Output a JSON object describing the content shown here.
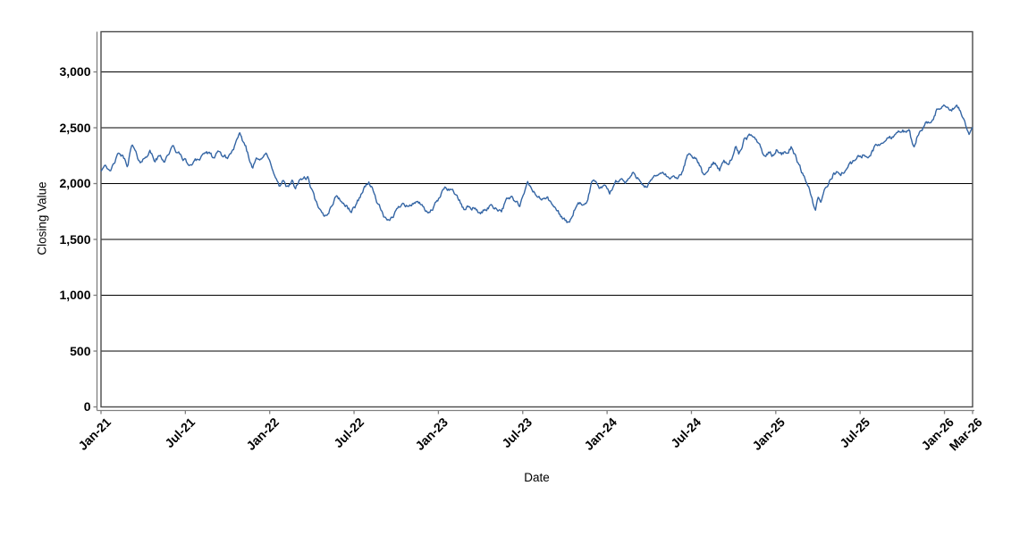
{
  "chart_data": {
    "type": "line",
    "title": "",
    "xlabel": "Date",
    "ylabel": "Closing Value",
    "x_unit_note": "x values are months elapsed since Jan-2021",
    "xlim": [
      0,
      62
    ],
    "ylim": [
      0,
      3360
    ],
    "grid": "horizontal-only",
    "legend": "none",
    "background_color": "#ffffff",
    "gridline_color": "#000000",
    "frame_color": "#4a4a4a",
    "axis_line_color": "#7f7f7f",
    "text_color": "#000000",
    "x_ticks": [
      {
        "m": 0,
        "label": "Jan-21"
      },
      {
        "m": 6,
        "label": "Jul-21"
      },
      {
        "m": 12,
        "label": "Jan-22"
      },
      {
        "m": 18,
        "label": "Jul-22"
      },
      {
        "m": 24,
        "label": "Jan-23"
      },
      {
        "m": 30,
        "label": "Jul-23"
      },
      {
        "m": 36,
        "label": "Jan-24"
      },
      {
        "m": 42,
        "label": "Jul-24"
      },
      {
        "m": 48,
        "label": "Jan-25"
      },
      {
        "m": 54,
        "label": "Jul-25"
      },
      {
        "m": 60,
        "label": "Jan-26"
      },
      {
        "m": 62,
        "label": "Mar-26"
      }
    ],
    "y_ticks": [
      {
        "v": 0,
        "label": "0"
      },
      {
        "v": 500,
        "label": "500"
      },
      {
        "v": 1000,
        "label": "1,000"
      },
      {
        "v": 1500,
        "label": "1,500"
      },
      {
        "v": 2000,
        "label": "2,000"
      },
      {
        "v": 2500,
        "label": "2,500"
      },
      {
        "v": 3000,
        "label": "3,000"
      }
    ],
    "series": [
      {
        "name": "Closing Value",
        "color": "#3465a4",
        "stroke_width": 1.4,
        "points": [
          [
            0,
            2110
          ],
          [
            0.3,
            2175
          ],
          [
            0.65,
            2095
          ],
          [
            1,
            2205
          ],
          [
            1.3,
            2270
          ],
          [
            1.6,
            2230
          ],
          [
            1.9,
            2165
          ],
          [
            2.2,
            2350
          ],
          [
            2.6,
            2230
          ],
          [
            2.9,
            2190
          ],
          [
            3.2,
            2255
          ],
          [
            3.5,
            2285
          ],
          [
            3.8,
            2205
          ],
          [
            4.2,
            2245
          ],
          [
            4.5,
            2205
          ],
          [
            4.8,
            2270
          ],
          [
            5.1,
            2325
          ],
          [
            5.4,
            2285
          ],
          [
            5.7,
            2245
          ],
          [
            6.1,
            2190
          ],
          [
            6.4,
            2150
          ],
          [
            6.7,
            2230
          ],
          [
            7,
            2220
          ],
          [
            7.4,
            2285
          ],
          [
            7.75,
            2255
          ],
          [
            8.1,
            2230
          ],
          [
            8.4,
            2285
          ],
          [
            8.7,
            2245
          ],
          [
            9,
            2230
          ],
          [
            9.35,
            2295
          ],
          [
            9.65,
            2375
          ],
          [
            9.85,
            2430
          ],
          [
            10.1,
            2375
          ],
          [
            10.3,
            2335
          ],
          [
            10.6,
            2190
          ],
          [
            10.8,
            2150
          ],
          [
            11.05,
            2255
          ],
          [
            11.4,
            2205
          ],
          [
            11.7,
            2270
          ],
          [
            12,
            2190
          ],
          [
            12.3,
            2110
          ],
          [
            12.5,
            2030
          ],
          [
            12.7,
            1965
          ],
          [
            12.95,
            2030
          ],
          [
            13.15,
            1975
          ],
          [
            13.35,
            1950
          ],
          [
            13.6,
            2030
          ],
          [
            13.8,
            1965
          ],
          [
            14,
            2005
          ],
          [
            14.3,
            2045
          ],
          [
            14.7,
            2050
          ],
          [
            15.1,
            1900
          ],
          [
            15.5,
            1760
          ],
          [
            15.9,
            1705
          ],
          [
            16.2,
            1750
          ],
          [
            16.5,
            1830
          ],
          [
            16.8,
            1900
          ],
          [
            17.1,
            1840
          ],
          [
            17.45,
            1795
          ],
          [
            17.8,
            1750
          ],
          [
            18.1,
            1800
          ],
          [
            18.5,
            1905
          ],
          [
            18.8,
            1980
          ],
          [
            19.05,
            2015
          ],
          [
            19.3,
            1950
          ],
          [
            19.6,
            1850
          ],
          [
            19.9,
            1770
          ],
          [
            20.15,
            1690
          ],
          [
            20.4,
            1650
          ],
          [
            20.7,
            1700
          ],
          [
            21,
            1755
          ],
          [
            21.5,
            1840
          ],
          [
            21.8,
            1805
          ],
          [
            22.1,
            1800
          ],
          [
            22.5,
            1855
          ],
          [
            22.8,
            1795
          ],
          [
            23.2,
            1735
          ],
          [
            23.5,
            1755
          ],
          [
            23.8,
            1815
          ],
          [
            24.1,
            1875
          ],
          [
            24.5,
            1975
          ],
          [
            24.8,
            1950
          ],
          [
            25.1,
            1935
          ],
          [
            25.5,
            1840
          ],
          [
            25.8,
            1765
          ],
          [
            26.1,
            1790
          ],
          [
            26.5,
            1785
          ],
          [
            26.8,
            1745
          ],
          [
            27.1,
            1740
          ],
          [
            27.5,
            1785
          ],
          [
            27.8,
            1805
          ],
          [
            28.1,
            1780
          ],
          [
            28.5,
            1765
          ],
          [
            28.9,
            1860
          ],
          [
            29.2,
            1885
          ],
          [
            29.5,
            1830
          ],
          [
            29.8,
            1800
          ],
          [
            30.05,
            1890
          ],
          [
            30.35,
            2000
          ],
          [
            30.6,
            1960
          ],
          [
            30.9,
            1905
          ],
          [
            31.3,
            1855
          ],
          [
            31.7,
            1885
          ],
          [
            32,
            1820
          ],
          [
            32.4,
            1765
          ],
          [
            32.8,
            1700
          ],
          [
            33.2,
            1645
          ],
          [
            33.5,
            1700
          ],
          [
            33.75,
            1790
          ],
          [
            34.1,
            1815
          ],
          [
            34.3,
            1780
          ],
          [
            34.6,
            1850
          ],
          [
            34.95,
            2035
          ],
          [
            35.25,
            2000
          ],
          [
            35.5,
            1950
          ],
          [
            35.9,
            1975
          ],
          [
            36.2,
            1915
          ],
          [
            36.6,
            2015
          ],
          [
            37,
            2045
          ],
          [
            37.3,
            2005
          ],
          [
            37.8,
            2085
          ],
          [
            38.3,
            2045
          ],
          [
            38.8,
            1965
          ],
          [
            39.2,
            2030
          ],
          [
            39.9,
            2110
          ],
          [
            40.3,
            2055
          ],
          [
            40.8,
            2045
          ],
          [
            41.3,
            2070
          ],
          [
            41.7,
            2255
          ],
          [
            42,
            2270
          ],
          [
            42.3,
            2215
          ],
          [
            42.6,
            2165
          ],
          [
            42.9,
            2055
          ],
          [
            43.2,
            2125
          ],
          [
            43.6,
            2195
          ],
          [
            44,
            2130
          ],
          [
            44.3,
            2200
          ],
          [
            44.6,
            2180
          ],
          [
            45,
            2255
          ],
          [
            45.15,
            2325
          ],
          [
            45.4,
            2260
          ],
          [
            45.8,
            2405
          ],
          [
            46.2,
            2420
          ],
          [
            46.5,
            2425
          ],
          [
            46.9,
            2340
          ],
          [
            47.2,
            2230
          ],
          [
            47.5,
            2285
          ],
          [
            47.8,
            2245
          ],
          [
            48.1,
            2310
          ],
          [
            48.5,
            2270
          ],
          [
            48.8,
            2285
          ],
          [
            49.1,
            2325
          ],
          [
            49.4,
            2245
          ],
          [
            49.7,
            2150
          ],
          [
            50,
            2070
          ],
          [
            50.3,
            1990
          ],
          [
            50.55,
            1880
          ],
          [
            50.8,
            1755
          ],
          [
            51,
            1855
          ],
          [
            51.2,
            1820
          ],
          [
            51.5,
            1965
          ],
          [
            51.8,
            2005
          ],
          [
            52.1,
            2085
          ],
          [
            52.4,
            2110
          ],
          [
            52.6,
            2070
          ],
          [
            53,
            2140
          ],
          [
            53.4,
            2180
          ],
          [
            53.8,
            2230
          ],
          [
            54.2,
            2255
          ],
          [
            54.6,
            2230
          ],
          [
            55,
            2320
          ],
          [
            55.4,
            2355
          ],
          [
            55.8,
            2385
          ],
          [
            56.1,
            2410
          ],
          [
            56.4,
            2430
          ],
          [
            56.8,
            2480
          ],
          [
            57.2,
            2470
          ],
          [
            57.5,
            2465
          ],
          [
            57.8,
            2320
          ],
          [
            58.1,
            2440
          ],
          [
            58.4,
            2495
          ],
          [
            58.7,
            2560
          ],
          [
            59,
            2525
          ],
          [
            59.4,
            2640
          ],
          [
            59.9,
            2705
          ],
          [
            60.2,
            2665
          ],
          [
            60.5,
            2640
          ],
          [
            60.8,
            2690
          ],
          [
            61.1,
            2660
          ],
          [
            61.4,
            2570
          ],
          [
            61.6,
            2480
          ],
          [
            61.75,
            2440
          ],
          [
            62,
            2505
          ]
        ]
      }
    ],
    "noise": {
      "seed": 42,
      "amplitude": 40,
      "smooth": 0.6,
      "n_points": 1000,
      "clamp": 50
    }
  }
}
